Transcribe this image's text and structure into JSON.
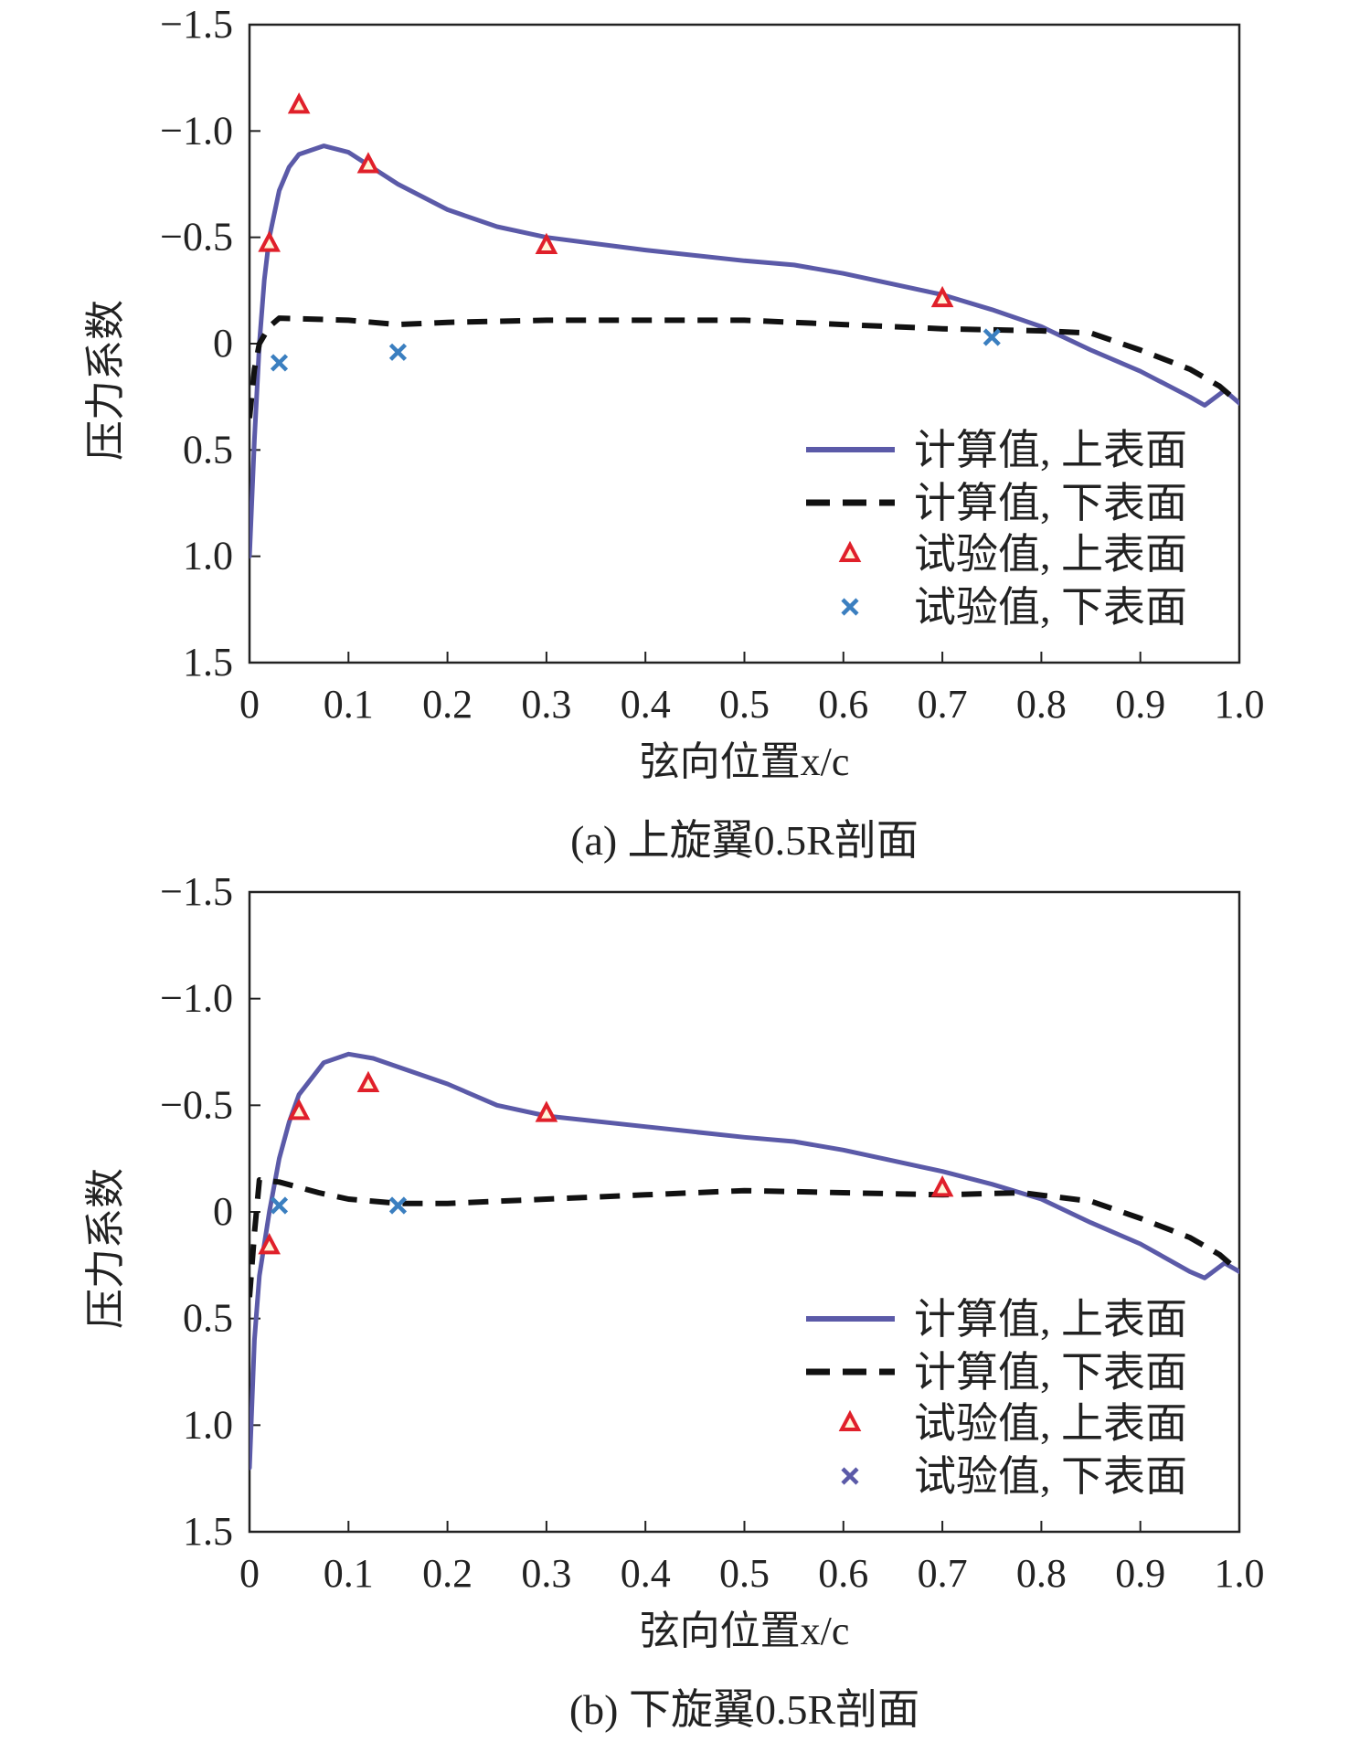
{
  "colors": {
    "upper_calc": "#5b5aa8",
    "lower_calc": "#111111",
    "upper_exp": "#e0202a",
    "lower_exp": "#3b7fc0"
  },
  "chart_data": [
    {
      "type": "line",
      "caption": "(a) 上旋翼0.5R剖面",
      "xlabel": "弦向位置x/c",
      "ylabel": "压力系数",
      "xlim": [
        0,
        1.0
      ],
      "ylim": [
        -1.5,
        1.5
      ],
      "y_inverted": true,
      "grid": false,
      "legend_position": "bottom-right",
      "xticks": [
        "0",
        "0.1",
        "0.2",
        "0.3",
        "0.4",
        "0.5",
        "0.6",
        "0.7",
        "0.8",
        "0.9",
        "1.0"
      ],
      "yticks": [
        "−1.5",
        "−1.0",
        "−0.5",
        "0",
        "0.5",
        "1.0",
        "1.5"
      ],
      "series": [
        {
          "name": "计算值, 上表面",
          "style": "solid",
          "x": [
            0,
            0.005,
            0.01,
            0.015,
            0.02,
            0.03,
            0.04,
            0.05,
            0.075,
            0.1,
            0.15,
            0.2,
            0.25,
            0.3,
            0.4,
            0.5,
            0.55,
            0.6,
            0.7,
            0.75,
            0.8,
            0.85,
            0.9,
            0.95,
            0.965,
            0.985,
            1.0
          ],
          "y": [
            1.0,
            0.45,
            0.0,
            -0.3,
            -0.5,
            -0.72,
            -0.83,
            -0.89,
            -0.93,
            -0.9,
            -0.75,
            -0.63,
            -0.55,
            -0.5,
            -0.44,
            -0.39,
            -0.37,
            -0.33,
            -0.23,
            -0.16,
            -0.08,
            0.03,
            0.13,
            0.25,
            0.29,
            0.22,
            0.28
          ]
        },
        {
          "name": "计算值, 下表面",
          "style": "dashed",
          "x": [
            0,
            0.005,
            0.01,
            0.02,
            0.03,
            0.1,
            0.15,
            0.2,
            0.3,
            0.4,
            0.5,
            0.6,
            0.7,
            0.8,
            0.85,
            0.9,
            0.95,
            0.98,
            1.0
          ],
          "y": [
            0.35,
            0.12,
            0.0,
            -0.08,
            -0.12,
            -0.11,
            -0.09,
            -0.1,
            -0.11,
            -0.11,
            -0.11,
            -0.09,
            -0.07,
            -0.06,
            -0.05,
            0.03,
            0.12,
            0.2,
            0.28
          ]
        },
        {
          "name": "试验值, 上表面",
          "style": "triangle",
          "x": [
            0.02,
            0.05,
            0.12,
            0.3,
            0.7
          ],
          "y": [
            -0.47,
            -1.12,
            -0.84,
            -0.46,
            -0.21
          ]
        },
        {
          "name": "试验值, 下表面",
          "style": "cross",
          "x": [
            0.03,
            0.15,
            0.75
          ],
          "y": [
            0.09,
            0.04,
            -0.03
          ]
        }
      ]
    },
    {
      "type": "line",
      "caption": "(b) 下旋翼0.5R剖面",
      "xlabel": "弦向位置x/c",
      "ylabel": "压力系数",
      "xlim": [
        0,
        1.0
      ],
      "ylim": [
        -1.5,
        1.5
      ],
      "y_inverted": true,
      "grid": false,
      "legend_position": "bottom-right",
      "xticks": [
        "0",
        "0.1",
        "0.2",
        "0.3",
        "0.4",
        "0.5",
        "0.6",
        "0.7",
        "0.8",
        "0.9",
        "1.0"
      ],
      "yticks": [
        "−1.5",
        "−1.0",
        "−0.5",
        "0",
        "0.5",
        "1.0",
        "1.5"
      ],
      "series": [
        {
          "name": "计算值, 上表面",
          "style": "solid",
          "x": [
            0,
            0.005,
            0.01,
            0.02,
            0.03,
            0.04,
            0.05,
            0.075,
            0.1,
            0.125,
            0.2,
            0.25,
            0.3,
            0.4,
            0.5,
            0.55,
            0.6,
            0.7,
            0.75,
            0.8,
            0.85,
            0.9,
            0.95,
            0.965,
            0.985,
            1.0
          ],
          "y": [
            1.2,
            0.6,
            0.3,
            0.0,
            -0.25,
            -0.42,
            -0.55,
            -0.7,
            -0.74,
            -0.72,
            -0.6,
            -0.5,
            -0.45,
            -0.4,
            -0.35,
            -0.33,
            -0.29,
            -0.19,
            -0.13,
            -0.06,
            0.05,
            0.15,
            0.28,
            0.31,
            0.24,
            0.28
          ]
        },
        {
          "name": "计算值, 下表面",
          "style": "dashed",
          "x": [
            0,
            0.005,
            0.01,
            0.03,
            0.07,
            0.1,
            0.15,
            0.2,
            0.3,
            0.4,
            0.5,
            0.6,
            0.7,
            0.78,
            0.85,
            0.9,
            0.95,
            0.98,
            1.0
          ],
          "y": [
            0.4,
            0.1,
            -0.15,
            -0.14,
            -0.09,
            -0.06,
            -0.04,
            -0.04,
            -0.06,
            -0.08,
            -0.1,
            -0.09,
            -0.08,
            -0.09,
            -0.05,
            0.03,
            0.12,
            0.2,
            0.28
          ]
        },
        {
          "name": "试验值, 上表面",
          "style": "triangle",
          "x": [
            0.02,
            0.05,
            0.12,
            0.3,
            0.7
          ],
          "y": [
            0.16,
            -0.47,
            -0.6,
            -0.46,
            -0.11
          ]
        },
        {
          "name": "试验值, 下表面",
          "style": "cross",
          "x": [
            0.03,
            0.15
          ],
          "y": [
            -0.03,
            -0.03
          ]
        }
      ]
    }
  ]
}
